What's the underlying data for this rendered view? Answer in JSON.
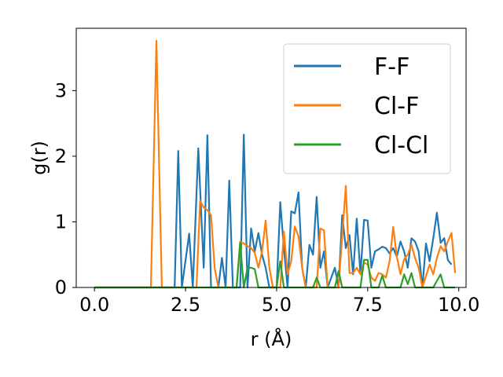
{
  "chart_data": {
    "type": "line",
    "xlabel": "r (Å)",
    "ylabel": "g(r)",
    "xlim": [
      -0.5,
      10.2
    ],
    "ylim": [
      0,
      3.95
    ],
    "xticks": [
      0.0,
      2.5,
      5.0,
      7.5,
      10.0
    ],
    "xtick_labels": [
      "0.0",
      "2.5",
      "5.0",
      "7.5",
      "10.0"
    ],
    "yticks": [
      0,
      1,
      2,
      3
    ],
    "ytick_labels": [
      "0",
      "1",
      "2",
      "3"
    ],
    "grid": false,
    "legend_position": "top-right",
    "series": [
      {
        "name": "F-F",
        "color": "#1f77b4",
        "points": [
          [
            0.0,
            0
          ],
          [
            2.2,
            0
          ],
          [
            2.3,
            2.08
          ],
          [
            2.4,
            0
          ],
          [
            2.6,
            0.82
          ],
          [
            2.7,
            0
          ],
          [
            2.85,
            2.12
          ],
          [
            3.0,
            0.3
          ],
          [
            3.1,
            2.32
          ],
          [
            3.2,
            0
          ],
          [
            3.4,
            0
          ],
          [
            3.5,
            0.45
          ],
          [
            3.6,
            0
          ],
          [
            3.7,
            1.63
          ],
          [
            3.8,
            0
          ],
          [
            4.0,
            0
          ],
          [
            4.1,
            2.33
          ],
          [
            4.2,
            0
          ],
          [
            4.3,
            0.9
          ],
          [
            4.4,
            0.55
          ],
          [
            4.5,
            0.83
          ],
          [
            4.6,
            0.5
          ],
          [
            4.7,
            0.3
          ],
          [
            4.8,
            0
          ],
          [
            5.0,
            0
          ],
          [
            5.1,
            1.3
          ],
          [
            5.2,
            0.6
          ],
          [
            5.3,
            0
          ],
          [
            5.4,
            1.16
          ],
          [
            5.5,
            1.13
          ],
          [
            5.6,
            1.45
          ],
          [
            5.7,
            0.3
          ],
          [
            5.8,
            0
          ],
          [
            5.9,
            0.65
          ],
          [
            6.0,
            0.5
          ],
          [
            6.1,
            1.38
          ],
          [
            6.2,
            0.3
          ],
          [
            6.3,
            0.55
          ],
          [
            6.4,
            0
          ],
          [
            6.6,
            0.3
          ],
          [
            6.7,
            0
          ],
          [
            6.8,
            1.1
          ],
          [
            6.9,
            0.6
          ],
          [
            7.0,
            0.8
          ],
          [
            7.1,
            0.2
          ],
          [
            7.2,
            1.05
          ],
          [
            7.3,
            0.2
          ],
          [
            7.4,
            1.03
          ],
          [
            7.5,
            1.02
          ],
          [
            7.6,
            0.3
          ],
          [
            7.7,
            0.55
          ],
          [
            7.8,
            0.58
          ],
          [
            7.9,
            0.62
          ],
          [
            8.0,
            0.6
          ],
          [
            8.1,
            0.52
          ],
          [
            8.2,
            0.6
          ],
          [
            8.3,
            0.47
          ],
          [
            8.4,
            0.7
          ],
          [
            8.5,
            0.55
          ],
          [
            8.6,
            0.3
          ],
          [
            8.7,
            0.75
          ],
          [
            8.8,
            0.7
          ],
          [
            8.9,
            0.55
          ],
          [
            9.0,
            0
          ],
          [
            9.1,
            0.67
          ],
          [
            9.2,
            0.4
          ],
          [
            9.3,
            0.75
          ],
          [
            9.4,
            1.14
          ],
          [
            9.5,
            0.68
          ],
          [
            9.6,
            0.75
          ],
          [
            9.7,
            0.42
          ],
          [
            9.8,
            0.35
          ]
        ]
      },
      {
        "name": "Cl-F",
        "color": "#ff7f0e",
        "points": [
          [
            0.0,
            0
          ],
          [
            1.55,
            0
          ],
          [
            1.7,
            3.76
          ],
          [
            1.85,
            0
          ],
          [
            2.8,
            0
          ],
          [
            2.9,
            1.32
          ],
          [
            3.0,
            1.22
          ],
          [
            3.1,
            1.18
          ],
          [
            3.2,
            1.1
          ],
          [
            3.3,
            0.3
          ],
          [
            3.4,
            0
          ],
          [
            3.9,
            0
          ],
          [
            4.0,
            0.7
          ],
          [
            4.1,
            0.67
          ],
          [
            4.2,
            0.63
          ],
          [
            4.3,
            0.6
          ],
          [
            4.4,
            0.53
          ],
          [
            4.5,
            0.3
          ],
          [
            4.6,
            0.55
          ],
          [
            4.7,
            1.02
          ],
          [
            4.8,
            0.3
          ],
          [
            4.9,
            0
          ],
          [
            5.1,
            0
          ],
          [
            5.2,
            0.85
          ],
          [
            5.3,
            0.2
          ],
          [
            5.4,
            0.4
          ],
          [
            5.5,
            0.93
          ],
          [
            5.6,
            0.78
          ],
          [
            5.7,
            0.3
          ],
          [
            5.8,
            0
          ],
          [
            6.1,
            0
          ],
          [
            6.2,
            0.9
          ],
          [
            6.3,
            0.87
          ],
          [
            6.4,
            0
          ],
          [
            6.7,
            0
          ],
          [
            6.9,
            1.55
          ],
          [
            7.0,
            0.22
          ],
          [
            7.1,
            0.22
          ],
          [
            7.2,
            0.3
          ],
          [
            7.3,
            0.2
          ],
          [
            7.4,
            0.38
          ],
          [
            7.5,
            0.35
          ],
          [
            7.6,
            0.15
          ],
          [
            7.7,
            0.1
          ],
          [
            7.8,
            0.22
          ],
          [
            7.9,
            0.2
          ],
          [
            8.0,
            0.15
          ],
          [
            8.1,
            0.4
          ],
          [
            8.2,
            0.92
          ],
          [
            8.3,
            0.47
          ],
          [
            8.4,
            0.2
          ],
          [
            8.5,
            0.43
          ],
          [
            8.6,
            0.5
          ],
          [
            8.7,
            0.65
          ],
          [
            8.8,
            0.45
          ],
          [
            8.9,
            0.3
          ],
          [
            9.0,
            0
          ],
          [
            9.2,
            0.35
          ],
          [
            9.3,
            0.2
          ],
          [
            9.4,
            0.45
          ],
          [
            9.5,
            0.63
          ],
          [
            9.6,
            0.55
          ],
          [
            9.7,
            0.7
          ],
          [
            9.8,
            0.83
          ],
          [
            9.9,
            0.22
          ]
        ]
      },
      {
        "name": "Cl-Cl",
        "color": "#2ca02c",
        "points": [
          [
            0.0,
            0
          ],
          [
            3.9,
            0
          ],
          [
            4.0,
            0.68
          ],
          [
            4.1,
            0
          ],
          [
            4.2,
            0.3
          ],
          [
            4.3,
            0.3
          ],
          [
            4.4,
            0.28
          ],
          [
            4.5,
            0
          ],
          [
            5.0,
            0
          ],
          [
            5.1,
            0.4
          ],
          [
            5.2,
            0
          ],
          [
            6.0,
            0
          ],
          [
            6.1,
            0.15
          ],
          [
            6.2,
            0
          ],
          [
            6.6,
            0
          ],
          [
            6.7,
            0.25
          ],
          [
            6.8,
            0
          ],
          [
            7.3,
            0
          ],
          [
            7.4,
            0.42
          ],
          [
            7.5,
            0.42
          ],
          [
            7.6,
            0
          ],
          [
            7.8,
            0
          ],
          [
            7.9,
            0.18
          ],
          [
            8.0,
            0
          ],
          [
            8.4,
            0
          ],
          [
            8.5,
            0.2
          ],
          [
            8.6,
            0.05
          ],
          [
            8.7,
            0.22
          ],
          [
            8.8,
            0
          ],
          [
            9.3,
            0
          ],
          [
            9.4,
            0.1
          ],
          [
            9.5,
            0.2
          ],
          [
            9.6,
            0
          ],
          [
            9.9,
            0
          ]
        ]
      }
    ]
  }
}
